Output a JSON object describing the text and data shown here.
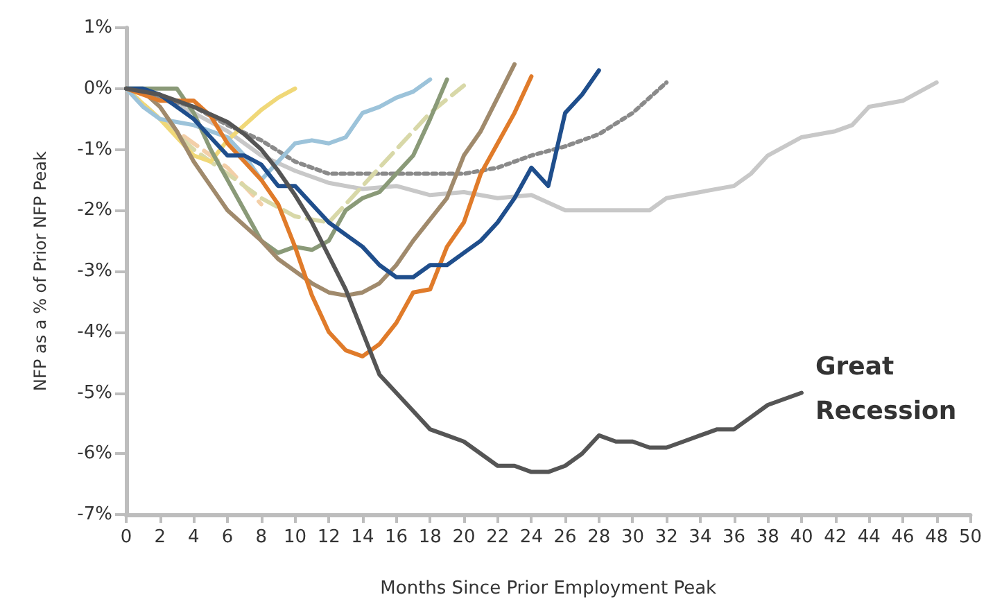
{
  "chart_data": {
    "type": "line",
    "xlabel": "Months Since Prior Employment Peak",
    "ylabel": "NFP as a % of Prior NFP Peak",
    "xlim": [
      0,
      50
    ],
    "xticks": [
      0,
      2,
      4,
      6,
      8,
      10,
      12,
      14,
      16,
      18,
      20,
      22,
      24,
      26,
      28,
      30,
      32,
      34,
      36,
      38,
      40,
      42,
      44,
      46,
      48,
      50
    ],
    "ylim": [
      -7,
      1
    ],
    "yticks": [
      {
        "value": 1,
        "label": "1%"
      },
      {
        "value": 0,
        "label": "0%"
      },
      {
        "value": -1,
        "label": "-1%"
      },
      {
        "value": -2,
        "label": "-2%"
      },
      {
        "value": -3,
        "label": "-3%"
      },
      {
        "value": -4,
        "label": "-4%"
      },
      {
        "value": -5,
        "label": "-5%"
      },
      {
        "value": -6,
        "label": "-6%"
      },
      {
        "value": -7,
        "label": "-7%"
      }
    ],
    "grid": false,
    "marker": "none",
    "series": [
      {
        "color": "#c8c8c8",
        "x": [
          0,
          2,
          4,
          6,
          8,
          10,
          12,
          14,
          16,
          18,
          20,
          22,
          24,
          26,
          28,
          30,
          31,
          32,
          34,
          36,
          37,
          38,
          40,
          42,
          43,
          44,
          46,
          47,
          48
        ],
        "values": [
          0,
          -0.15,
          -0.4,
          -0.7,
          -1.1,
          -1.35,
          -1.55,
          -1.65,
          -1.6,
          -1.75,
          -1.7,
          -1.8,
          -1.75,
          -2.0,
          -2.0,
          -2.0,
          -2.0,
          -1.8,
          -1.7,
          -1.6,
          -1.4,
          -1.1,
          -0.8,
          -0.7,
          -0.6,
          -0.3,
          -0.2,
          -0.05,
          0.1
        ]
      },
      {
        "color": "#8a8a8a",
        "line_style": "dotted",
        "x": [
          0,
          4,
          6,
          8,
          10,
          12,
          14,
          16,
          18,
          20,
          22,
          24,
          26,
          28,
          30,
          32
        ],
        "values": [
          0,
          -0.3,
          -0.6,
          -0.85,
          -1.2,
          -1.4,
          -1.4,
          -1.4,
          -1.4,
          -1.4,
          -1.3,
          -1.1,
          -0.95,
          -0.75,
          -0.4,
          0.1
        ]
      },
      {
        "color": "#f3cfa8",
        "line_style": "dashed",
        "x": [
          0,
          2,
          4,
          6,
          8
        ],
        "values": [
          0,
          -0.5,
          -0.9,
          -1.3,
          -1.9
        ]
      },
      {
        "color": "#d8d8a8",
        "line_style": "dashed",
        "x": [
          0,
          2,
          4,
          6,
          8,
          10,
          12,
          14,
          16,
          18,
          20
        ],
        "values": [
          0,
          -0.5,
          -1.0,
          -1.4,
          -1.8,
          -2.1,
          -2.2,
          -1.6,
          -1.0,
          -0.4,
          0.05
        ]
      },
      {
        "color": "#f0d878",
        "x": [
          0,
          1,
          2,
          3,
          4,
          5,
          6,
          7,
          8,
          9,
          10
        ],
        "values": [
          0,
          -0.25,
          -0.5,
          -0.8,
          -1.1,
          -1.2,
          -0.85,
          -0.6,
          -0.35,
          -0.15,
          0
        ]
      },
      {
        "color": "#9cc3da",
        "x": [
          0,
          1,
          2,
          3,
          4,
          5,
          6,
          7,
          8,
          9,
          10,
          11,
          12,
          13,
          14,
          15,
          16,
          17,
          18
        ],
        "values": [
          0,
          -0.3,
          -0.5,
          -0.55,
          -0.6,
          -0.7,
          -0.8,
          -1.1,
          -1.5,
          -1.2,
          -0.9,
          -0.85,
          -0.9,
          -0.8,
          -0.4,
          -0.3,
          -0.15,
          -0.05,
          0.15
        ]
      },
      {
        "color": "#8a9a78",
        "x": [
          0,
          1,
          2,
          3,
          4,
          5,
          6,
          7,
          8,
          9,
          10,
          11,
          12,
          13,
          14,
          15,
          16,
          17,
          18,
          19
        ],
        "values": [
          0,
          0,
          0,
          0,
          -0.4,
          -1.0,
          -1.5,
          -2.0,
          -2.5,
          -2.7,
          -2.6,
          -2.65,
          -2.5,
          -2.0,
          -1.8,
          -1.7,
          -1.4,
          -1.1,
          -0.5,
          0.15
        ]
      },
      {
        "color": "#a08a6c",
        "x": [
          0,
          1,
          2,
          3,
          4,
          5,
          6,
          7,
          8,
          9,
          10,
          11,
          12,
          13,
          14,
          15,
          16,
          17,
          18,
          19,
          20,
          21,
          22,
          23
        ],
        "values": [
          0,
          -0.05,
          -0.3,
          -0.7,
          -1.2,
          -1.6,
          -2.0,
          -2.25,
          -2.5,
          -2.8,
          -3.0,
          -3.2,
          -3.35,
          -3.4,
          -3.35,
          -3.2,
          -2.9,
          -2.5,
          -2.15,
          -1.8,
          -1.1,
          -0.7,
          -0.15,
          0.4
        ]
      },
      {
        "color": "#e07b2a",
        "x": [
          0,
          1,
          2,
          3,
          4,
          5,
          6,
          7,
          8,
          9,
          10,
          11,
          12,
          13,
          14,
          15,
          16,
          17,
          18,
          19,
          20,
          21,
          22,
          23,
          24
        ],
        "values": [
          0,
          -0.1,
          -0.2,
          -0.2,
          -0.2,
          -0.45,
          -0.9,
          -1.2,
          -1.5,
          -1.9,
          -2.6,
          -3.4,
          -4.0,
          -4.3,
          -4.4,
          -4.2,
          -3.85,
          -3.35,
          -3.3,
          -2.6,
          -2.2,
          -1.4,
          -0.9,
          -0.4,
          0.2
        ]
      },
      {
        "color": "#1f4e8c",
        "x": [
          0,
          1,
          2,
          3,
          4,
          5,
          6,
          7,
          8,
          9,
          10,
          11,
          12,
          13,
          14,
          15,
          16,
          17,
          18,
          19,
          20,
          21,
          22,
          23,
          24,
          25,
          26,
          27,
          28
        ],
        "values": [
          0,
          0,
          -0.1,
          -0.3,
          -0.5,
          -0.8,
          -1.1,
          -1.1,
          -1.25,
          -1.6,
          -1.6,
          -1.9,
          -2.2,
          -2.4,
          -2.6,
          -2.9,
          -3.1,
          -3.1,
          -2.9,
          -2.9,
          -2.7,
          -2.5,
          -2.2,
          -1.8,
          -1.3,
          -1.6,
          -0.4,
          -0.1,
          0.3
        ]
      },
      {
        "color": "#555555",
        "x": [
          0,
          2,
          4,
          6,
          7,
          8,
          9,
          10,
          11,
          12,
          13,
          14,
          15,
          16,
          17,
          18,
          19,
          20,
          21,
          22,
          23,
          24,
          25,
          26,
          27,
          28,
          29,
          30,
          31,
          32,
          33,
          34,
          35,
          36,
          37,
          38,
          39,
          40
        ],
        "values": [
          0,
          -0.1,
          -0.3,
          -0.55,
          -0.75,
          -1.0,
          -1.35,
          -1.75,
          -2.2,
          -2.75,
          -3.3,
          -4.0,
          -4.7,
          -5.0,
          -5.3,
          -5.6,
          -5.7,
          -5.8,
          -6.0,
          -6.2,
          -6.2,
          -6.3,
          -6.3,
          -6.2,
          -6.0,
          -5.7,
          -5.8,
          -5.8,
          -5.9,
          -5.9,
          -5.8,
          -5.7,
          -5.6,
          -5.6,
          -5.4,
          -5.2,
          -5.1,
          -5.0
        ]
      }
    ],
    "annotations": [
      {
        "text": "Great Recession",
        "x": 40,
        "y": -5
      }
    ]
  }
}
